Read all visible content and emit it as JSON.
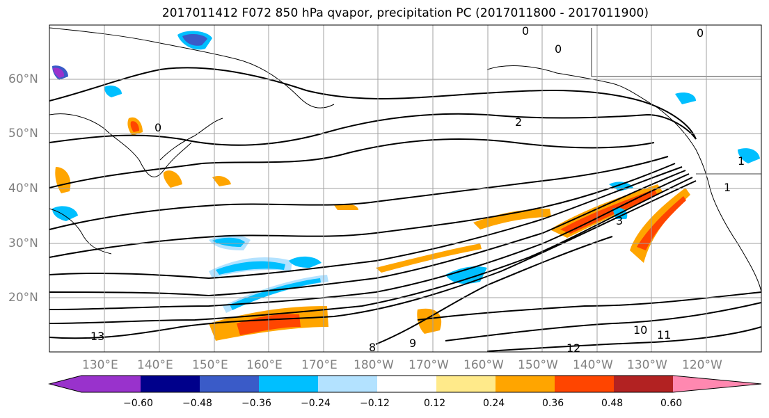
{
  "title": "2017011412 F072 850 hPa qvapor, precipitation PC (2017011800 - 2017011900)",
  "lat_labels": [
    "60°N",
    "50°N",
    "40°N",
    "30°N",
    "20°N"
  ],
  "lon_labels": [
    "130°E",
    "140°E",
    "150°E",
    "160°E",
    "170°E",
    "180°W",
    "170°W",
    "160°W",
    "150°W",
    "140°W",
    "130°W",
    "120°W"
  ],
  "contour_labels": [
    "0",
    "0",
    "0",
    "0",
    "2",
    "1",
    "1",
    "3",
    "13",
    "12",
    "11",
    "10",
    "9",
    "8"
  ],
  "colorbar": {
    "ticks": [
      "−0.60",
      "−0.48",
      "−0.36",
      "−0.24",
      "−0.12",
      "0.12",
      "0.24",
      "0.36",
      "0.48",
      "0.60"
    ],
    "colors": [
      "#9932cc",
      "#00008b",
      "#3a5bc8",
      "#00bfff",
      "#b3e2ff",
      "#ffffff",
      "#ffea8a",
      "#ffa500",
      "#ff4500",
      "#b22222",
      "#ff88b0"
    ]
  }
}
